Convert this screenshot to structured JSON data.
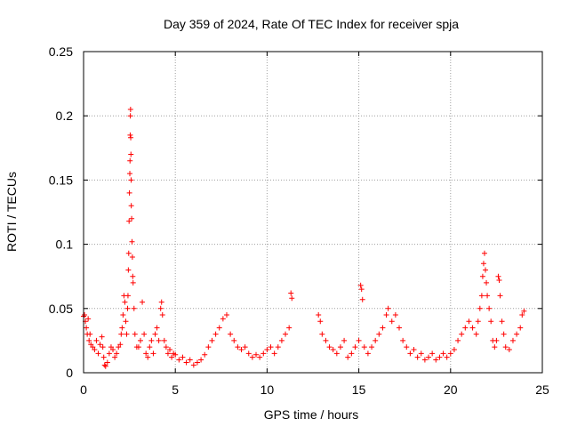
{
  "chart_data": {
    "type": "scatter",
    "title": "Day 359 of 2024, Rate Of TEC Index for receiver spja",
    "xlabel": "GPS time / hours",
    "ylabel": "ROTI / TECUs",
    "xlim": [
      0,
      25
    ],
    "ylim": [
      0,
      0.25
    ],
    "xticks": [
      0,
      5,
      10,
      15,
      20,
      25
    ],
    "xtick_labels": [
      "0",
      "5",
      "10",
      "15",
      "20",
      "25"
    ],
    "yticks": [
      0,
      0.05,
      0.1,
      0.15,
      0.2,
      0.25
    ],
    "ytick_labels": [
      "0",
      "0.05",
      "0.1",
      "0.15",
      "0.2",
      "0.25"
    ],
    "grid": true,
    "marker": "+",
    "series": [
      {
        "name": "ROTI",
        "color": "#ff0000",
        "points": [
          [
            0.0,
            0.044
          ],
          [
            0.05,
            0.045
          ],
          [
            0.1,
            0.04
          ],
          [
            0.15,
            0.035
          ],
          [
            0.2,
            0.03
          ],
          [
            0.25,
            0.042
          ],
          [
            0.3,
            0.025
          ],
          [
            0.35,
            0.03
          ],
          [
            0.4,
            0.022
          ],
          [
            0.5,
            0.02
          ],
          [
            0.6,
            0.018
          ],
          [
            0.7,
            0.025
          ],
          [
            0.8,
            0.015
          ],
          [
            0.9,
            0.022
          ],
          [
            1.0,
            0.028
          ],
          [
            1.05,
            0.02
          ],
          [
            1.1,
            0.012
          ],
          [
            1.15,
            0.006
          ],
          [
            1.2,
            0.005
          ],
          [
            1.3,
            0.008
          ],
          [
            1.4,
            0.015
          ],
          [
            1.5,
            0.02
          ],
          [
            1.6,
            0.018
          ],
          [
            1.7,
            0.012
          ],
          [
            1.8,
            0.015
          ],
          [
            1.9,
            0.02
          ],
          [
            2.0,
            0.022
          ],
          [
            2.05,
            0.03
          ],
          [
            2.1,
            0.035
          ],
          [
            2.15,
            0.045
          ],
          [
            2.2,
            0.06
          ],
          [
            2.25,
            0.055
          ],
          [
            2.3,
            0.04
          ],
          [
            2.35,
            0.03
          ],
          [
            2.4,
            0.05
          ],
          [
            2.42,
            0.06
          ],
          [
            2.44,
            0.08
          ],
          [
            2.46,
            0.093
          ],
          [
            2.48,
            0.118
          ],
          [
            2.5,
            0.14
          ],
          [
            2.52,
            0.155
          ],
          [
            2.53,
            0.165
          ],
          [
            2.54,
            0.185
          ],
          [
            2.55,
            0.2
          ],
          [
            2.56,
            0.205
          ],
          [
            2.57,
            0.183
          ],
          [
            2.58,
            0.17
          ],
          [
            2.59,
            0.15
          ],
          [
            2.6,
            0.13
          ],
          [
            2.62,
            0.12
          ],
          [
            2.64,
            0.102
          ],
          [
            2.66,
            0.09
          ],
          [
            2.68,
            0.075
          ],
          [
            2.7,
            0.07
          ],
          [
            2.75,
            0.05
          ],
          [
            2.8,
            0.03
          ],
          [
            2.9,
            0.02
          ],
          [
            3.0,
            0.02
          ],
          [
            3.1,
            0.025
          ],
          [
            3.2,
            0.055
          ],
          [
            3.3,
            0.03
          ],
          [
            3.4,
            0.015
          ],
          [
            3.5,
            0.012
          ],
          [
            3.6,
            0.02
          ],
          [
            3.7,
            0.025
          ],
          [
            3.8,
            0.015
          ],
          [
            3.9,
            0.03
          ],
          [
            4.0,
            0.035
          ],
          [
            4.1,
            0.025
          ],
          [
            4.2,
            0.05
          ],
          [
            4.25,
            0.055
          ],
          [
            4.3,
            0.045
          ],
          [
            4.4,
            0.025
          ],
          [
            4.5,
            0.02
          ],
          [
            4.6,
            0.015
          ],
          [
            4.7,
            0.018
          ],
          [
            4.8,
            0.012
          ],
          [
            4.9,
            0.015
          ],
          [
            5.0,
            0.014
          ],
          [
            5.2,
            0.01
          ],
          [
            5.4,
            0.012
          ],
          [
            5.6,
            0.008
          ],
          [
            5.8,
            0.01
          ],
          [
            6.0,
            0.006
          ],
          [
            6.2,
            0.008
          ],
          [
            6.4,
            0.01
          ],
          [
            6.6,
            0.014
          ],
          [
            6.8,
            0.02
          ],
          [
            7.0,
            0.025
          ],
          [
            7.2,
            0.03
          ],
          [
            7.4,
            0.035
          ],
          [
            7.6,
            0.042
          ],
          [
            7.8,
            0.045
          ],
          [
            8.0,
            0.03
          ],
          [
            8.2,
            0.025
          ],
          [
            8.4,
            0.02
          ],
          [
            8.6,
            0.018
          ],
          [
            8.8,
            0.02
          ],
          [
            9.0,
            0.015
          ],
          [
            9.2,
            0.012
          ],
          [
            9.4,
            0.014
          ],
          [
            9.6,
            0.012
          ],
          [
            9.8,
            0.015
          ],
          [
            10.0,
            0.018
          ],
          [
            10.2,
            0.02
          ],
          [
            10.4,
            0.015
          ],
          [
            10.6,
            0.02
          ],
          [
            10.8,
            0.025
          ],
          [
            11.0,
            0.03
          ],
          [
            11.2,
            0.035
          ],
          [
            11.3,
            0.062
          ],
          [
            11.35,
            0.058
          ],
          [
            12.8,
            0.045
          ],
          [
            12.9,
            0.04
          ],
          [
            13.0,
            0.03
          ],
          [
            13.2,
            0.025
          ],
          [
            13.4,
            0.02
          ],
          [
            13.6,
            0.018
          ],
          [
            13.8,
            0.015
          ],
          [
            14.0,
            0.02
          ],
          [
            14.2,
            0.025
          ],
          [
            14.4,
            0.012
          ],
          [
            14.6,
            0.015
          ],
          [
            14.8,
            0.02
          ],
          [
            15.0,
            0.025
          ],
          [
            15.1,
            0.068
          ],
          [
            15.15,
            0.065
          ],
          [
            15.2,
            0.057
          ],
          [
            15.3,
            0.02
          ],
          [
            15.5,
            0.015
          ],
          [
            15.7,
            0.02
          ],
          [
            15.9,
            0.025
          ],
          [
            16.1,
            0.03
          ],
          [
            16.3,
            0.035
          ],
          [
            16.5,
            0.045
          ],
          [
            16.6,
            0.05
          ],
          [
            16.8,
            0.04
          ],
          [
            17.0,
            0.045
          ],
          [
            17.2,
            0.035
          ],
          [
            17.4,
            0.025
          ],
          [
            17.6,
            0.02
          ],
          [
            17.8,
            0.015
          ],
          [
            18.0,
            0.018
          ],
          [
            18.2,
            0.012
          ],
          [
            18.4,
            0.015
          ],
          [
            18.6,
            0.01
          ],
          [
            18.8,
            0.012
          ],
          [
            19.0,
            0.015
          ],
          [
            19.2,
            0.01
          ],
          [
            19.4,
            0.012
          ],
          [
            19.6,
            0.015
          ],
          [
            19.8,
            0.012
          ],
          [
            20.0,
            0.015
          ],
          [
            20.2,
            0.018
          ],
          [
            20.4,
            0.025
          ],
          [
            20.6,
            0.03
          ],
          [
            20.8,
            0.035
          ],
          [
            21.0,
            0.04
          ],
          [
            21.2,
            0.035
          ],
          [
            21.4,
            0.03
          ],
          [
            21.5,
            0.04
          ],
          [
            21.6,
            0.05
          ],
          [
            21.7,
            0.06
          ],
          [
            21.75,
            0.075
          ],
          [
            21.8,
            0.085
          ],
          [
            21.85,
            0.093
          ],
          [
            21.9,
            0.08
          ],
          [
            21.95,
            0.07
          ],
          [
            22.0,
            0.06
          ],
          [
            22.1,
            0.05
          ],
          [
            22.2,
            0.04
          ],
          [
            22.3,
            0.025
          ],
          [
            22.4,
            0.02
          ],
          [
            22.5,
            0.025
          ],
          [
            22.6,
            0.075
          ],
          [
            22.65,
            0.072
          ],
          [
            22.7,
            0.06
          ],
          [
            22.8,
            0.04
          ],
          [
            22.9,
            0.03
          ],
          [
            23.0,
            0.02
          ],
          [
            23.2,
            0.018
          ],
          [
            23.4,
            0.025
          ],
          [
            23.6,
            0.03
          ],
          [
            23.8,
            0.035
          ],
          [
            23.9,
            0.045
          ],
          [
            24.0,
            0.048
          ]
        ]
      }
    ]
  },
  "colors": {
    "series": "#ff0000",
    "grid": "#a0a0a0",
    "axis": "#000000",
    "background": "#ffffff"
  }
}
